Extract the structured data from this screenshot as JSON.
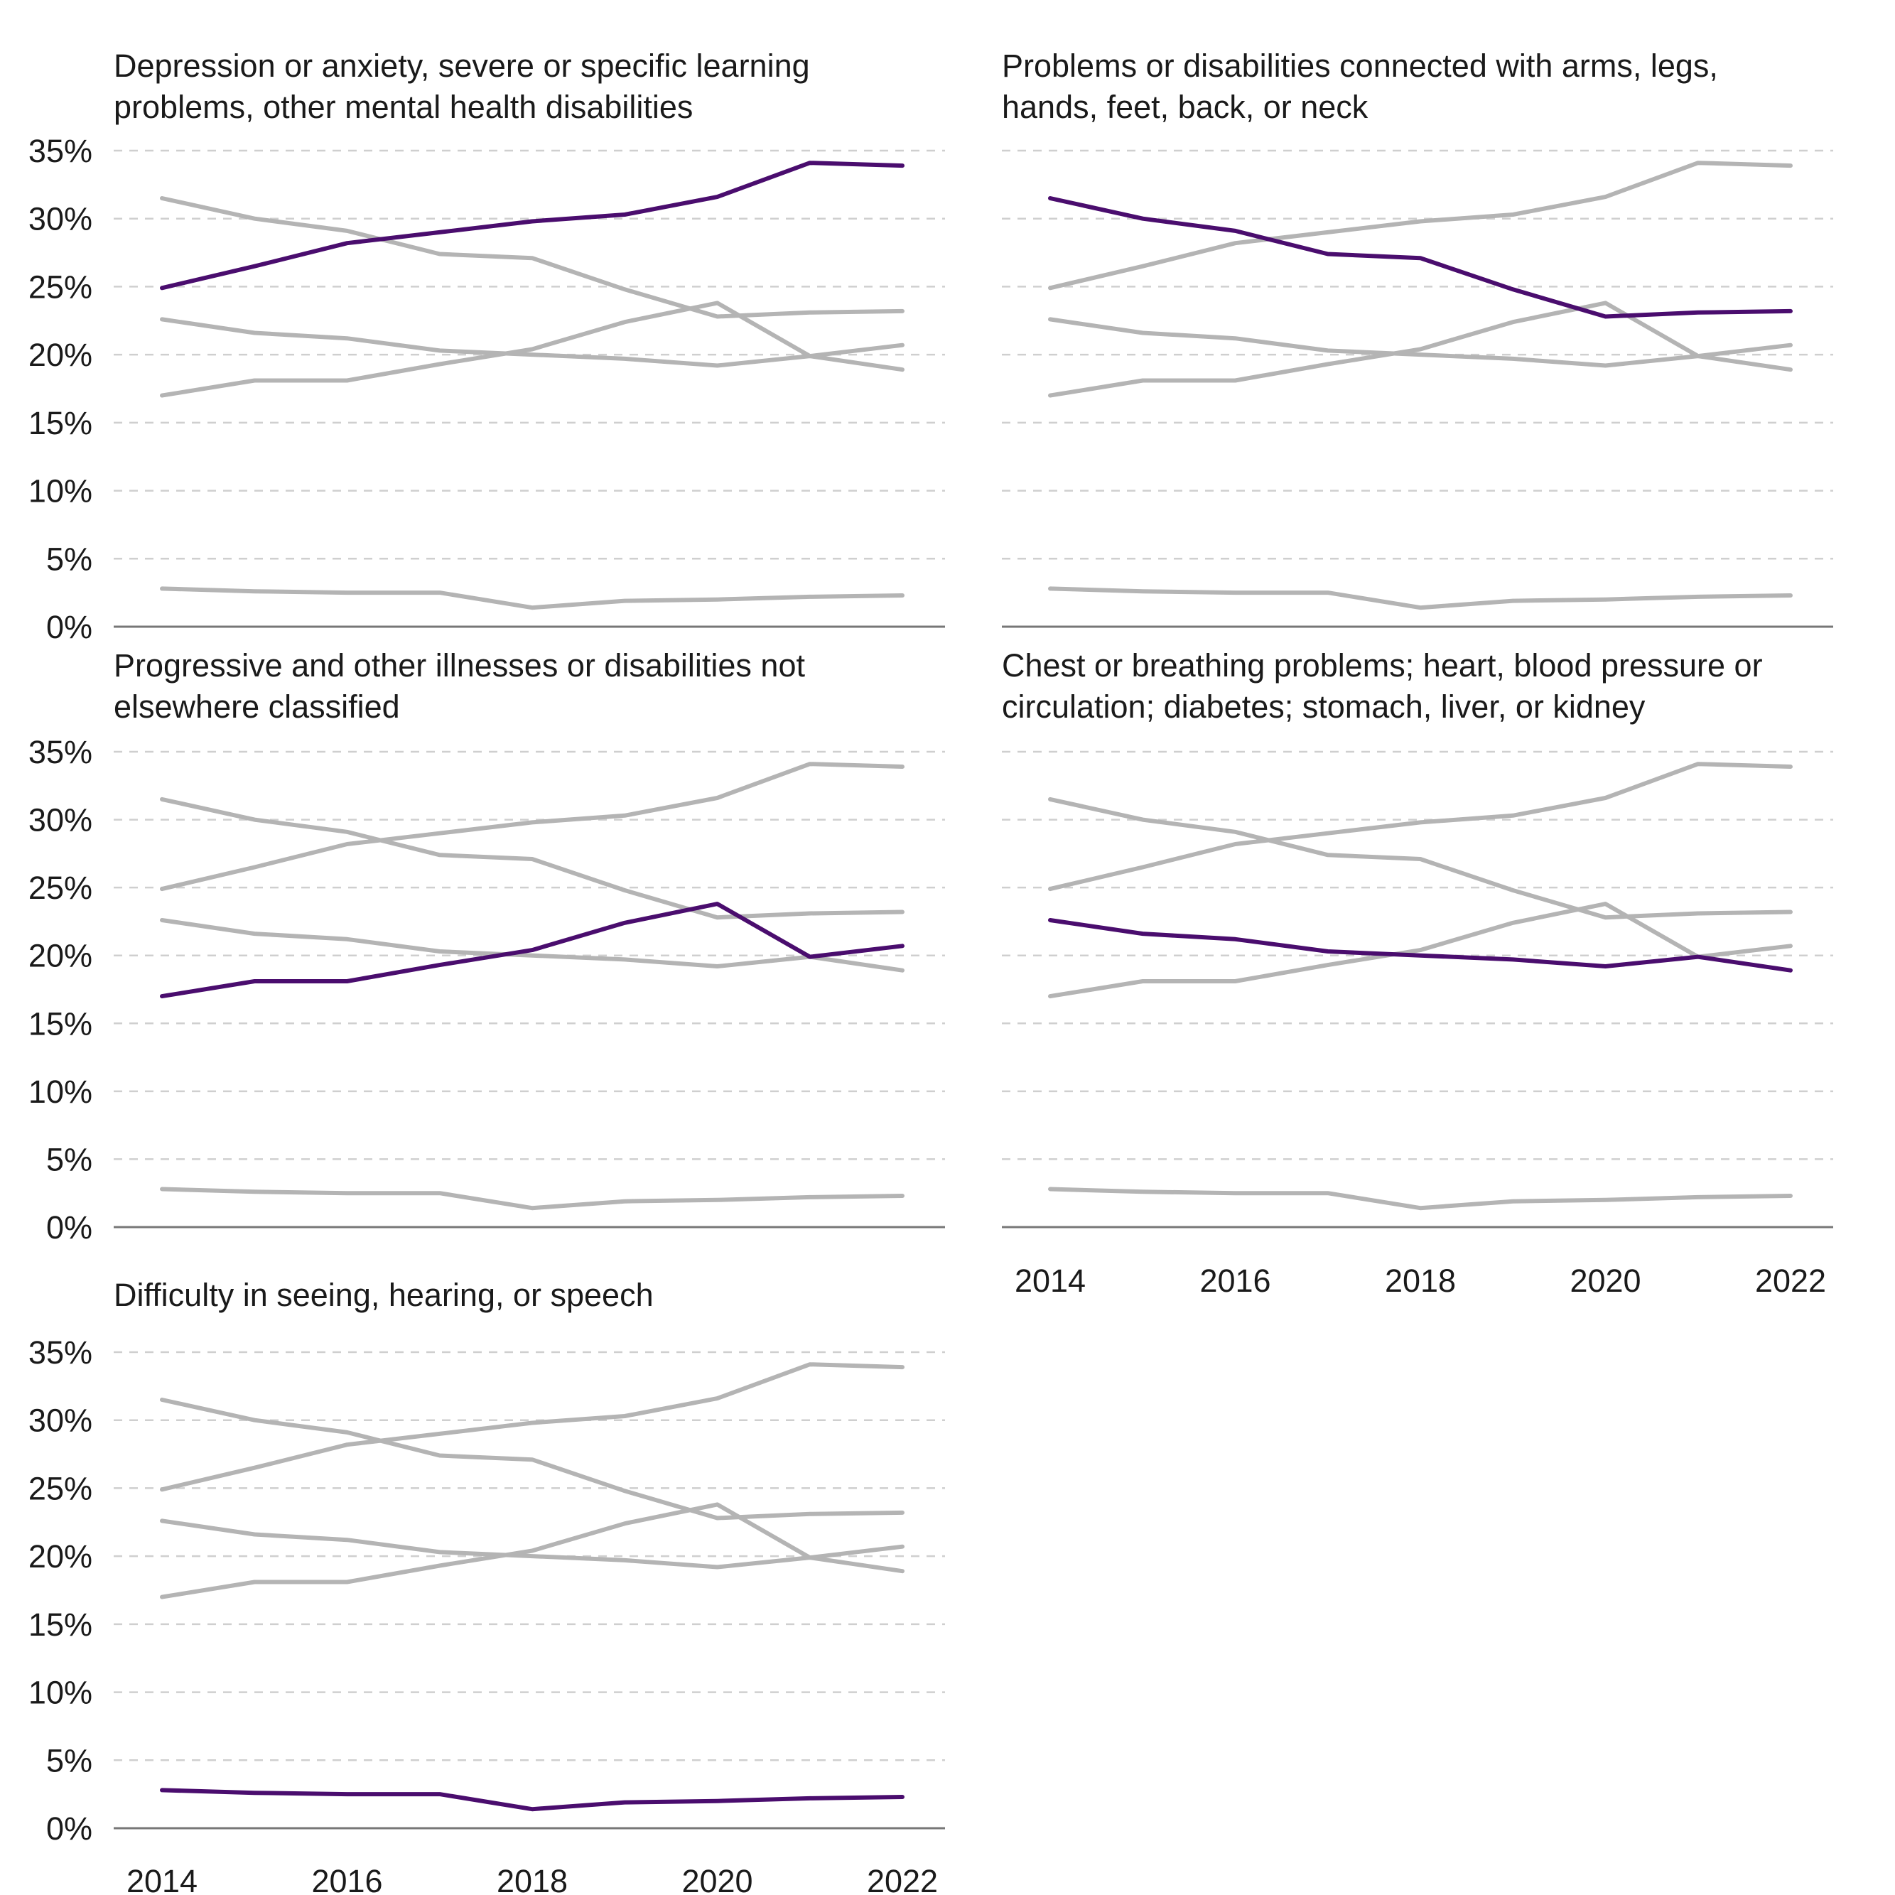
{
  "chart_data": {
    "type": "line",
    "x": [
      2014,
      2015,
      2016,
      2017,
      2018,
      2019,
      2020,
      2021,
      2022
    ],
    "y_ticks": [
      "0%",
      "5%",
      "10%",
      "15%",
      "20%",
      "25%",
      "30%",
      "35%"
    ],
    "x_ticks": [
      "2014",
      "2016",
      "2018",
      "2020",
      "2022"
    ],
    "ylim": [
      0,
      35
    ],
    "grid": true,
    "colors": {
      "highlight": "#4a0d6e",
      "muted": "#b4b4b4"
    },
    "series": [
      {
        "values": [
          24.9,
          26.5,
          28.2,
          29.0,
          29.8,
          30.3,
          31.6,
          34.1,
          33.9
        ]
      },
      {
        "values": [
          31.5,
          30.0,
          29.1,
          27.4,
          27.1,
          24.8,
          22.8,
          23.1,
          23.2
        ]
      },
      {
        "values": [
          17.0,
          18.1,
          18.1,
          19.3,
          20.4,
          22.4,
          23.8,
          19.9,
          20.7
        ]
      },
      {
        "values": [
          22.6,
          21.6,
          21.2,
          20.3,
          20.0,
          19.7,
          19.2,
          19.9,
          18.9
        ]
      },
      {
        "values": [
          2.8,
          2.6,
          2.5,
          2.5,
          1.4,
          1.9,
          2.0,
          2.2,
          2.3
        ]
      }
    ],
    "panels": [
      {
        "title_lines": [
          "Depression or anxiety, severe or specific learning",
          "problems, other mental health disabilities"
        ],
        "highlight": 0,
        "show_x_ticks": false
      },
      {
        "title_lines": [
          "Problems or disabilities connected with arms, legs,",
          "hands, feet, back, or neck"
        ],
        "highlight": 1,
        "show_x_ticks": false
      },
      {
        "title_lines": [
          "Progressive and other illnesses or disabilities not",
          "elsewhere classified"
        ],
        "highlight": 2,
        "show_x_ticks": false
      },
      {
        "title_lines": [
          "Chest or breathing problems; heart, blood pressure or",
          "circulation; diabetes; stomach, liver, or kidney"
        ],
        "highlight": 3,
        "show_x_ticks": true
      },
      {
        "title_lines": [
          "Difficulty in seeing, hearing, or speech"
        ],
        "highlight": 4,
        "show_x_ticks": true
      }
    ]
  }
}
